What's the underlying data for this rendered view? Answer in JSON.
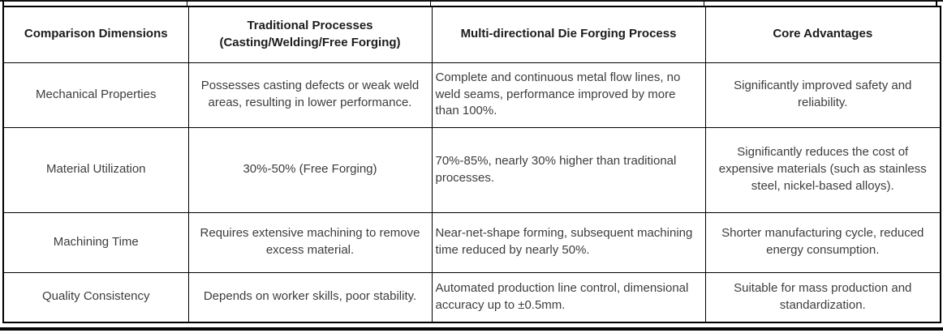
{
  "table": {
    "headers": {
      "dimension": "Comparison Dimensions",
      "traditional": "Traditional Processes\n(Casting/Welding/Free Forging)",
      "die_forging": "Multi-directional Die Forging Process",
      "advantages": "Core Advantages"
    },
    "rows": [
      {
        "dimension": "Mechanical Properties",
        "traditional": "Possesses casting defects or weak weld areas, resulting in lower performance.",
        "die_forging": "Complete and continuous metal flow lines, no weld seams, performance improved by more than 100%.",
        "advantages": "Significantly improved safety and reliability."
      },
      {
        "dimension": "Material Utilization",
        "traditional": "30%-50% (Free Forging)",
        "die_forging": "70%-85%, nearly 30% higher than traditional processes.",
        "advantages": "Significantly reduces the cost of expensive materials (such as stainless steel, nickel-based alloys)."
      },
      {
        "dimension": "Machining Time",
        "traditional": "Requires extensive machining to remove excess material.",
        "die_forging": "Near-net-shape forming, subsequent machining time reduced by nearly 50%.",
        "advantages": "Shorter manufacturing cycle, reduced energy consumption."
      },
      {
        "dimension": "Quality Consistency",
        "traditional": "Depends on worker skills, poor stability.",
        "die_forging": "Automated production line control, dimensional accuracy up to ±0.5mm.",
        "advantages": "Suitable for mass production and standardization."
      }
    ]
  },
  "colors": {
    "border": "#000000",
    "header_text": "#1c1c1c",
    "body_text": "#3d3d3d",
    "background": "#ffffff"
  }
}
